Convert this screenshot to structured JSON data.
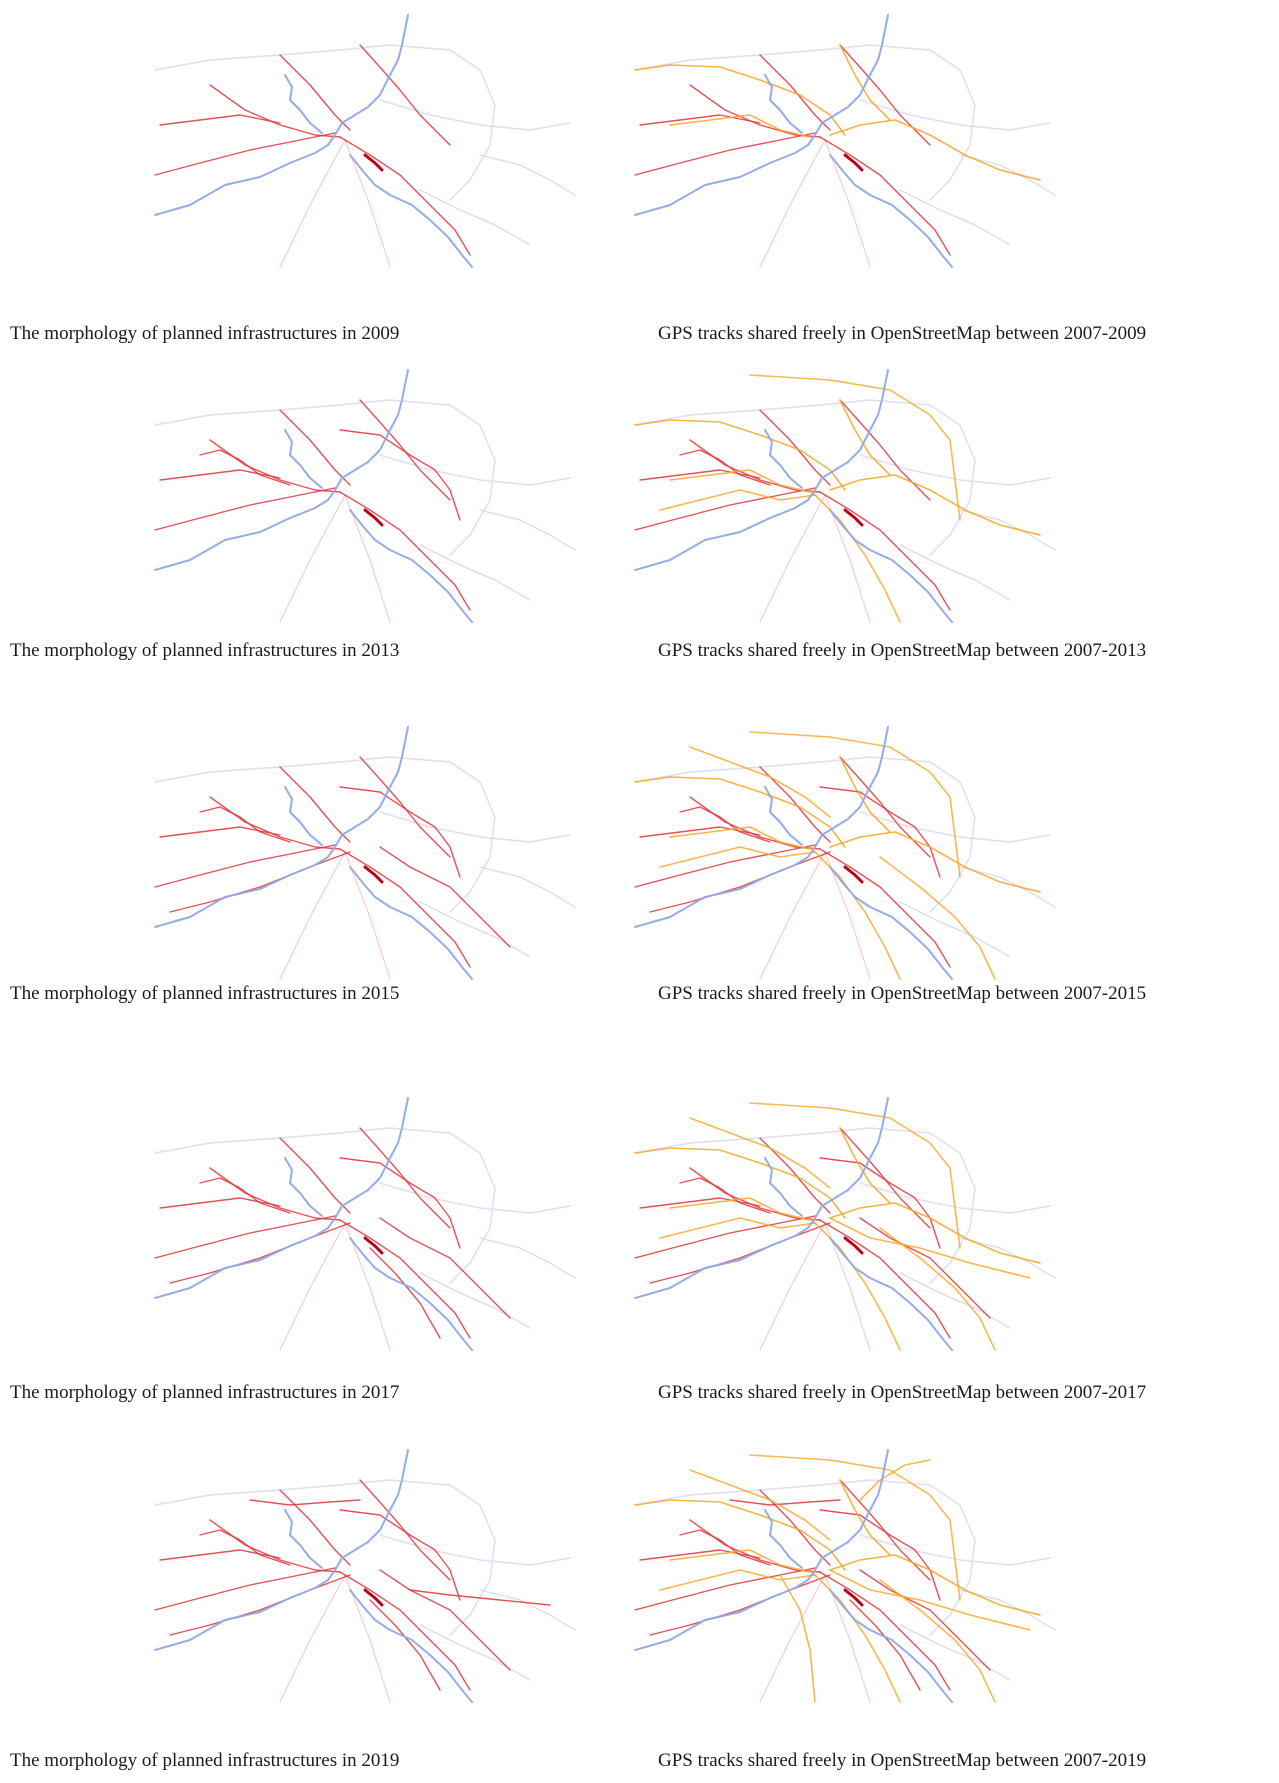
{
  "figure": {
    "panels": [
      {
        "kind": "planned",
        "caption": "The morphology of planned infrastructures in 2009"
      },
      {
        "kind": "gps",
        "caption": "GPS tracks shared freely in OpenStreetMap between 2007-2009"
      },
      {
        "kind": "planned",
        "caption": "The morphology of planned infrastructures in 2013"
      },
      {
        "kind": "gps",
        "caption": "GPS tracks shared freely in OpenStreetMap between 2007-2013"
      },
      {
        "kind": "planned",
        "caption": "The morphology of planned infrastructures in 2015"
      },
      {
        "kind": "gps",
        "caption": "GPS tracks shared freely in OpenStreetMap between 2007-2015"
      },
      {
        "kind": "planned",
        "caption": "The morphology of planned infrastructures in 2017"
      },
      {
        "kind": "gps",
        "caption": "GPS tracks shared freely in OpenStreetMap between 2007-2017"
      },
      {
        "kind": "planned",
        "caption": "The morphology of planned infrastructures in 2019"
      },
      {
        "kind": "gps",
        "caption": "GPS tracks shared freely in OpenStreetMap between 2007-2019"
      }
    ]
  },
  "colors": {
    "river": "#8fa8e8",
    "context": "#d9dcf0",
    "planned": "#e0323c",
    "planned_dense": "#b8001c",
    "gps": "#f6a623",
    "faint_planned": "#f5c1c1",
    "caption_text": "#1a1a1a"
  }
}
